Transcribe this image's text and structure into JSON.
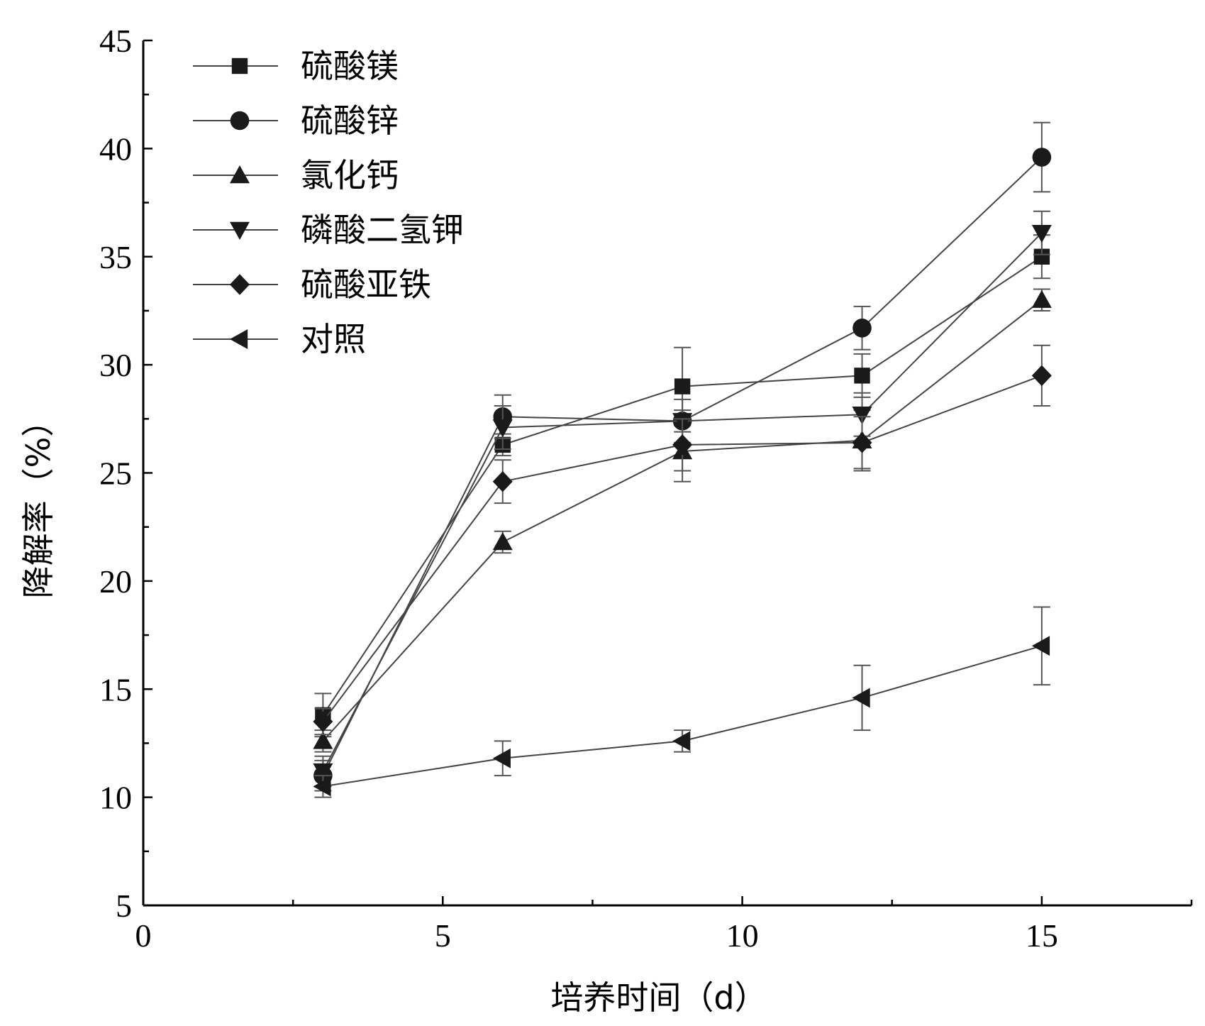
{
  "chart_data": {
    "type": "line",
    "title": "",
    "xlabel": "培养时间（d）",
    "ylabel": "降解率（%）",
    "xlim": [
      0,
      17.5
    ],
    "ylim": [
      5,
      45
    ],
    "x_ticks": [
      0,
      5,
      10,
      15
    ],
    "x_tick_labels": [
      "0",
      "5",
      "10",
      "15"
    ],
    "x_minor_ticks": [
      2.5,
      7.5,
      12.5,
      17.5
    ],
    "y_ticks": [
      5,
      10,
      15,
      20,
      25,
      30,
      35,
      40,
      45
    ],
    "y_tick_labels": [
      "5",
      "10",
      "15",
      "20",
      "25",
      "30",
      "35",
      "40",
      "45"
    ],
    "y_minor_ticks": [
      7.5,
      12.5,
      17.5,
      22.5,
      27.5,
      32.5,
      37.5,
      42.5
    ],
    "grid": false,
    "legend_position": "top-left",
    "x": [
      3,
      6,
      9,
      12,
      15
    ],
    "series": [
      {
        "name": "硫酸镁",
        "marker": "square",
        "values": [
          13.8,
          26.3,
          29.0,
          29.5,
          35.0
        ],
        "errors": [
          1.0,
          0.5,
          1.8,
          1.0,
          1.0
        ]
      },
      {
        "name": "硫酸锌",
        "marker": "circle",
        "values": [
          11.0,
          27.6,
          27.4,
          31.7,
          39.6
        ],
        "errors": [
          0.7,
          1.0,
          0.5,
          1.0,
          1.6
        ]
      },
      {
        "name": "氯化钙",
        "marker": "triangle-up",
        "values": [
          12.6,
          21.8,
          26.0,
          26.5,
          33.0
        ],
        "errors": [
          0.5,
          0.5,
          1.4,
          1.4,
          0.5
        ]
      },
      {
        "name": "磷酸二氢钾",
        "marker": "triangle-down",
        "values": [
          11.2,
          27.1,
          27.4,
          27.7,
          36.1
        ],
        "errors": [
          0.7,
          1.0,
          1.0,
          1.0,
          1.0
        ]
      },
      {
        "name": "硫酸亚铁",
        "marker": "diamond",
        "values": [
          13.5,
          24.6,
          26.3,
          26.4,
          29.5
        ],
        "errors": [
          0.6,
          1.0,
          1.2,
          1.2,
          1.4
        ]
      },
      {
        "name": "对照",
        "marker": "triangle-left",
        "values": [
          10.5,
          11.8,
          12.6,
          14.6,
          17.0
        ],
        "errors": [
          0.5,
          0.8,
          0.5,
          1.5,
          1.8
        ]
      }
    ]
  }
}
